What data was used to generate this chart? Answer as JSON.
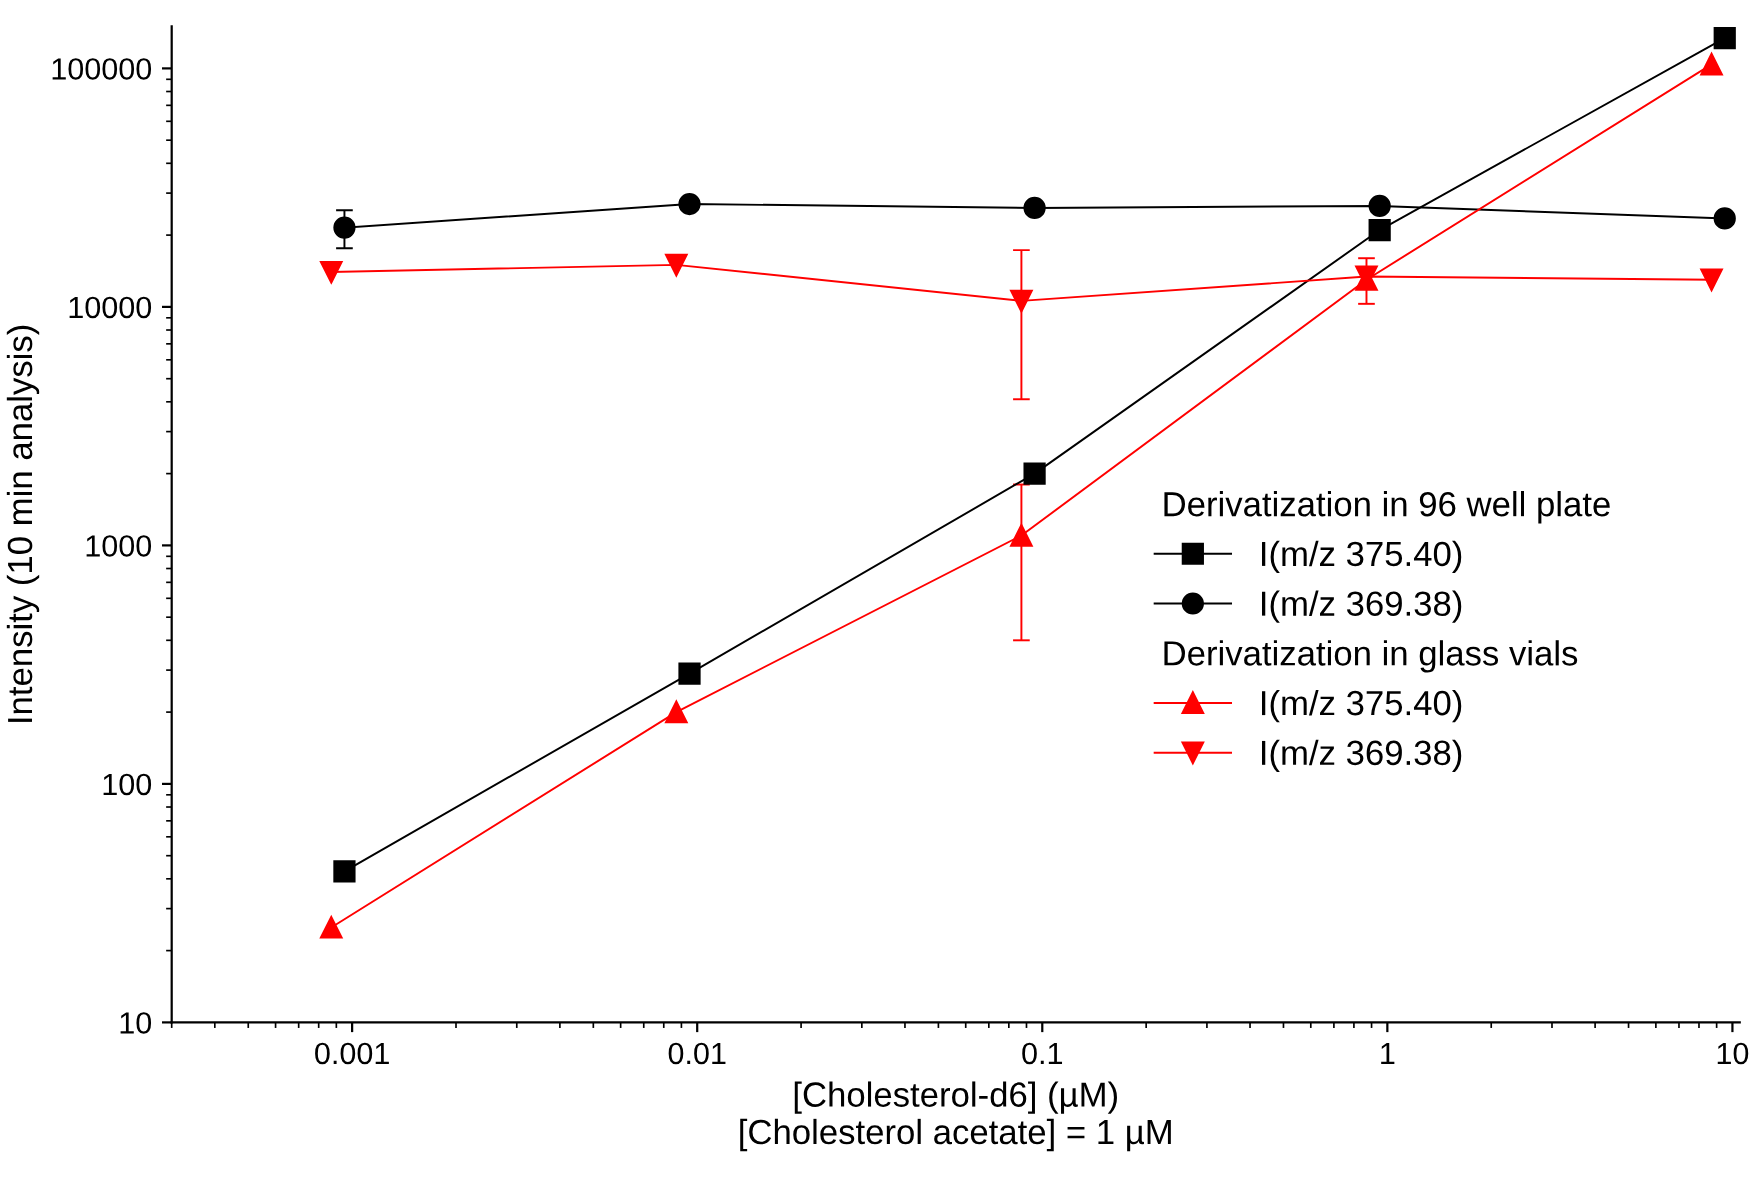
{
  "chart_data": {
    "type": "line",
    "xlabel": "[Cholesterol-d6] (µM)\n[Cholesterol acetate] = 1 µM",
    "ylabel": "Intensity (10 min analysis)",
    "log": "xy",
    "xlim": [
      0.0003,
      10.5
    ],
    "xticks": [
      0.001,
      0.01,
      0.1,
      1,
      10
    ],
    "ylim": [
      10,
      150000
    ],
    "yticks": [
      10,
      100,
      1000,
      10000,
      100000
    ],
    "grid": false,
    "legend": "bottom right",
    "annotations": [
      "Derivatization in 96 well plate",
      "Derivatization in glass vials"
    ],
    "series": [
      {
        "name": "I(m/z 375.40)",
        "color": "#000000",
        "marker": "square",
        "x": [
          0.00095,
          0.0095,
          0.095,
          0.95,
          9.5
        ],
        "values": [
          43,
          290,
          2000,
          21000,
          134000
        ]
      },
      {
        "name": "I(m/z 369.38)",
        "color": "#000000",
        "marker": "circle",
        "x": [
          0.00095,
          0.0095,
          0.095,
          0.95,
          9.5
        ],
        "values": [
          21500,
          27000,
          26000,
          26500,
          23500
        ],
        "errors": [
          [
            17600,
            25400
          ],
          null,
          null,
          null,
          null
        ]
      },
      {
        "name": "I(m/z 375.40)",
        "color": "#ff0000",
        "marker": "triangle",
        "x": [
          0.00087,
          0.0087,
          0.087,
          0.87,
          8.7
        ],
        "values": [
          25,
          200,
          1100,
          13000,
          104000
        ],
        "errors": [
          null,
          null,
          [
            400,
            1800
          ],
          [
            10300,
            16000
          ],
          null
        ]
      },
      {
        "name": "I(m/z 369.38)",
        "color": "#ff0000",
        "marker": "triangle_down",
        "x": [
          0.00087,
          0.0087,
          0.087,
          0.87,
          8.7
        ],
        "values": [
          14000,
          15000,
          10600,
          13400,
          13000
        ],
        "errors": [
          null,
          null,
          [
            4100,
            17300
          ],
          null,
          null
        ]
      }
    ]
  }
}
